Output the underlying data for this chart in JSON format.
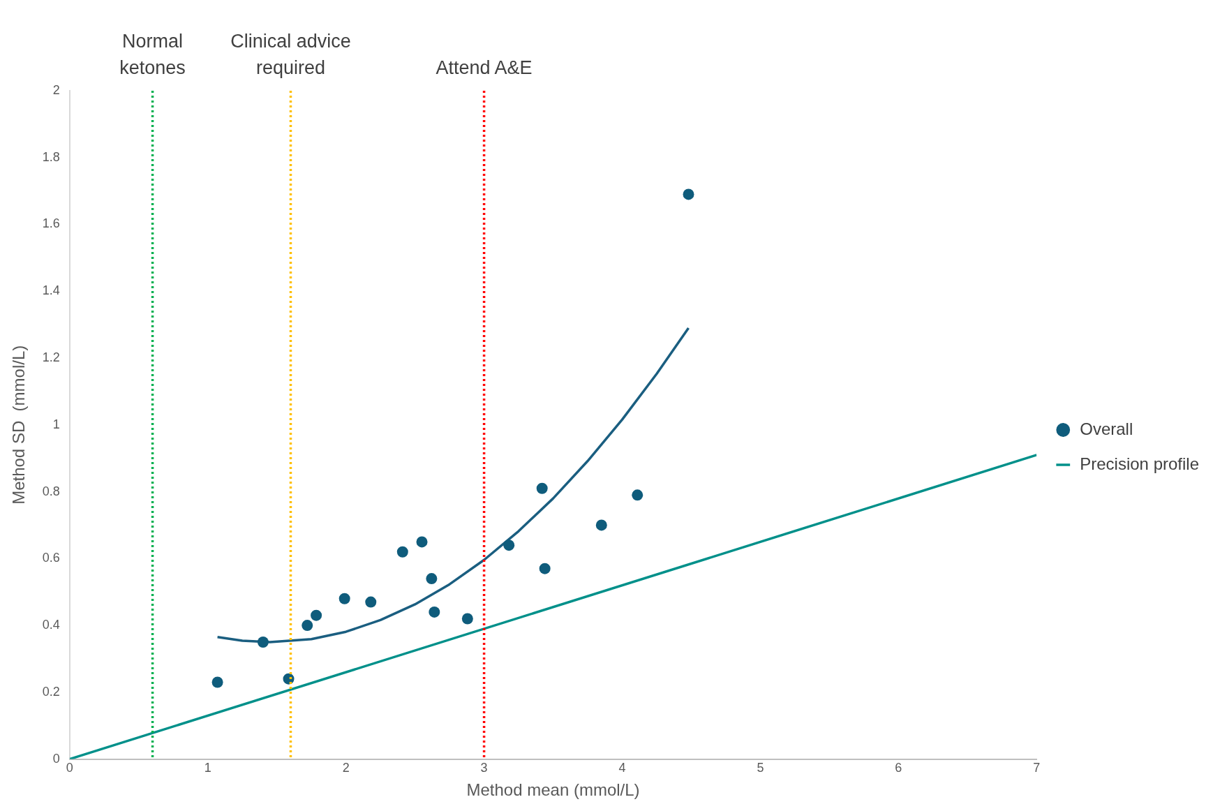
{
  "chart_data": {
    "type": "scatter",
    "xlabel": "Method mean (mmol/L)",
    "ylabel": "Method SD  (mmol/L)",
    "xlim": [
      0,
      7
    ],
    "xticks": [
      0,
      1,
      2,
      3,
      4,
      5,
      6,
      7
    ],
    "ylim": [
      0,
      2
    ],
    "yticks": [
      0,
      0.2,
      0.4,
      0.6,
      0.8,
      1,
      1.2,
      1.4,
      1.6,
      1.8,
      2
    ],
    "grid": false,
    "legend": "right",
    "marker": "circle",
    "series": [
      {
        "name": "Overall",
        "type": "scatter",
        "color": "#0f5c7c",
        "x": [
          1.07,
          1.4,
          1.585,
          1.72,
          1.785,
          1.99,
          2.18,
          2.41,
          2.55,
          2.62,
          2.64,
          2.88,
          3.18,
          3.42,
          3.44,
          3.85,
          4.11,
          4.48
        ],
        "values": [
          0.23,
          0.35,
          0.24,
          0.4,
          0.43,
          0.48,
          0.47,
          0.62,
          0.65,
          0.54,
          0.44,
          0.42,
          0.64,
          0.81,
          0.57,
          0.7,
          0.79,
          1.69
        ]
      },
      {
        "type": "line",
        "color": "#1a5e80",
        "line_style": "solid",
        "marker": "none",
        "x": [
          1.07,
          1.25,
          1.45,
          1.75,
          2,
          2.25,
          2.5,
          2.75,
          3,
          3.25,
          3.5,
          3.75,
          4,
          4.25,
          4.48
        ],
        "values": [
          0.365,
          0.354,
          0.35,
          0.359,
          0.381,
          0.416,
          0.463,
          0.523,
          0.596,
          0.682,
          0.78,
          0.892,
          1.016,
          1.153,
          1.29
        ]
      },
      {
        "name": "Precision profile",
        "type": "line",
        "color": "#00908a",
        "line_style": "solid",
        "marker": "none",
        "x": [
          0,
          7
        ],
        "values": [
          0,
          0.91
        ]
      }
    ],
    "ref_lines": [
      {
        "axis": "x",
        "value": 0.6,
        "label": "Normal ketones",
        "color": "#00b050",
        "line_style": "dotted"
      },
      {
        "axis": "x",
        "value": 1.6,
        "label": "Clinical advice required",
        "color": "#ffc000",
        "line_style": "dotted"
      },
      {
        "axis": "x",
        "value": 3,
        "label": "Attend A&E",
        "color": "#ff0000",
        "line_style": "dotted"
      }
    ]
  }
}
